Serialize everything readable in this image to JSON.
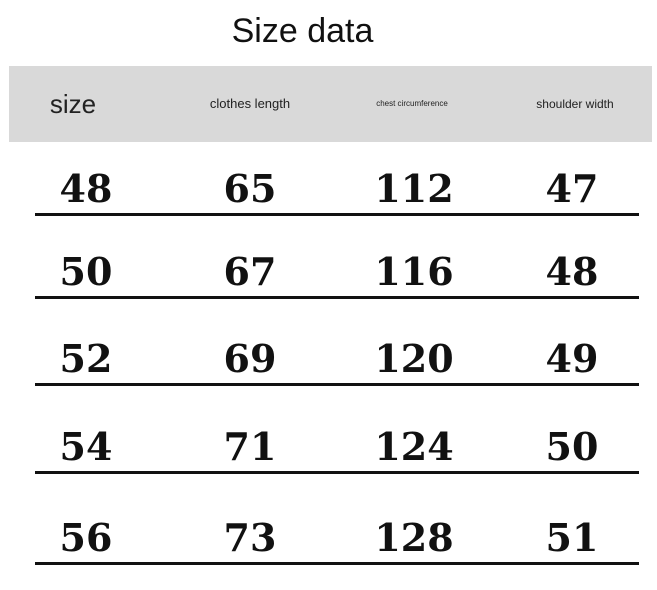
{
  "title": "Size data",
  "table": {
    "headers": [
      "size",
      "clothes length",
      "chest circumference",
      "shoulder width"
    ],
    "rows": [
      [
        "48",
        "65",
        "112",
        "47"
      ],
      [
        "50",
        "67",
        "116",
        "48"
      ],
      [
        "52",
        "69",
        "120",
        "49"
      ],
      [
        "54",
        "71",
        "124",
        "50"
      ],
      [
        "56",
        "73",
        "128",
        "51"
      ]
    ]
  },
  "colors": {
    "header_bg": "#d9d9d9",
    "text": "#111111"
  }
}
